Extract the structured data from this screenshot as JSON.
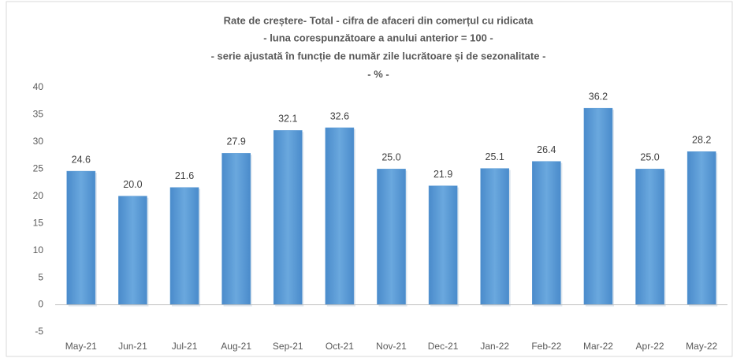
{
  "chart_data": {
    "type": "bar",
    "title": [
      "Rate de creștere- Total - cifra de afaceri din comerțul cu ridicata",
      "- luna corespunzătoare a anului anterior = 100 -",
      "- serie ajustată în funcție de număr zile lucrătoare și de sezonalitate -",
      "- % -"
    ],
    "categories": [
      "May-21",
      "Jun-21",
      "Jul-21",
      "Aug-21",
      "Sep-21",
      "Oct-21",
      "Nov-21",
      "Dec-21",
      "Jan-22",
      "Feb-22",
      "Mar-22",
      "Apr-22",
      "May-22"
    ],
    "values": [
      24.6,
      20.0,
      21.6,
      27.9,
      32.1,
      32.6,
      25.0,
      21.9,
      25.1,
      26.4,
      36.2,
      25.0,
      28.2
    ],
    "value_labels": [
      "24.6",
      "20.0",
      "21.6",
      "27.9",
      "32.1",
      "32.6",
      "25.0",
      "21.9",
      "25.1",
      "26.4",
      "36.2",
      "25.0",
      "28.2"
    ],
    "color": "#5b9bd5",
    "ylim": [
      -5,
      40
    ],
    "yticks": [
      -5,
      0,
      5,
      10,
      15,
      20,
      25,
      30,
      35,
      40
    ],
    "grid": false
  }
}
